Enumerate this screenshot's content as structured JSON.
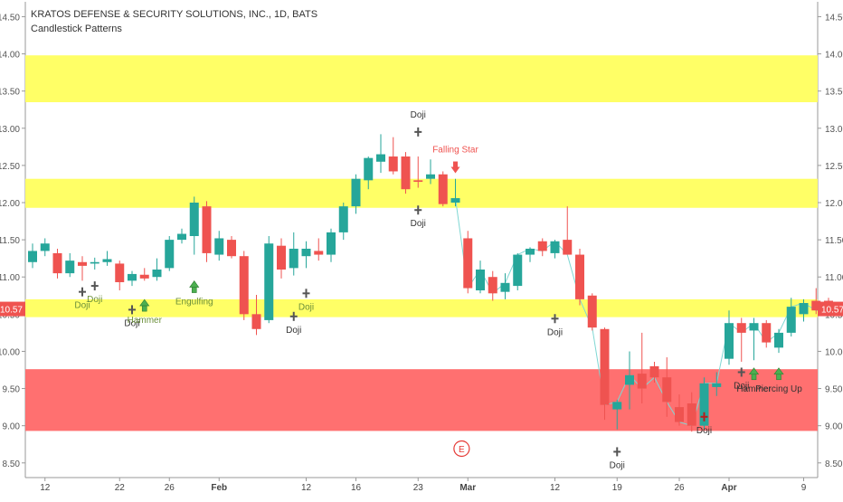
{
  "header": {
    "title": "KRATOS DEFENSE & SECURITY SOLUTIONS, INC., 1D, BATS",
    "subtitle": "Candlestick Patterns"
  },
  "last_price_badge": "10.57",
  "earnings_marker": "E",
  "colors": {
    "up": "#26a69a",
    "down": "#ef5350",
    "zone_yellow": "#ffff66",
    "zone_red": "#ff7070",
    "line": "#7fd7d3",
    "pattern_down": "#ef5350",
    "pattern_up": "#4caf50",
    "doji": "#555555",
    "badge": "#ef5350"
  },
  "chart_data": {
    "type": "candlestick",
    "title": "KRATOS DEFENSE & SECURITY SOLUTIONS, INC., 1D, BATS",
    "subtitle": "Candlestick Patterns",
    "ylim": [
      8.4,
      14.7
    ],
    "y_ticks": [
      "8.50",
      "9.00",
      "9.50",
      "10.00",
      "10.50",
      "11.00",
      "11.50",
      "12.00",
      "12.50",
      "13.00",
      "13.50",
      "14.00",
      "14.50"
    ],
    "x_ticks": [
      {
        "label": "12",
        "index": 1
      },
      {
        "label": "22",
        "index": 7
      },
      {
        "label": "26",
        "index": 11
      },
      {
        "label": "Feb",
        "index": 15
      },
      {
        "label": "12",
        "index": 22
      },
      {
        "label": "16",
        "index": 26
      },
      {
        "label": "23",
        "index": 31
      },
      {
        "label": "Mar",
        "index": 35
      },
      {
        "label": "12",
        "index": 42
      },
      {
        "label": "19",
        "index": 47
      },
      {
        "label": "26",
        "index": 52
      },
      {
        "label": "Apr",
        "index": 56
      },
      {
        "label": "9",
        "index": 62
      }
    ],
    "zones": [
      {
        "color": "yellow",
        "from": 13.35,
        "to": 13.98
      },
      {
        "color": "yellow",
        "from": 11.93,
        "to": 12.32
      },
      {
        "color": "yellow",
        "from": 10.46,
        "to": 10.7
      },
      {
        "color": "red",
        "from": 8.93,
        "to": 9.76
      }
    ],
    "candles": [
      {
        "o": 11.2,
        "h": 11.45,
        "l": 11.12,
        "c": 11.35
      },
      {
        "o": 11.35,
        "h": 11.52,
        "l": 11.28,
        "c": 11.45
      },
      {
        "o": 11.32,
        "h": 11.38,
        "l": 10.98,
        "c": 11.05
      },
      {
        "o": 11.05,
        "h": 11.32,
        "l": 11.0,
        "c": 11.22
      },
      {
        "o": 11.2,
        "h": 11.28,
        "l": 10.95,
        "c": 11.15
      },
      {
        "o": 11.18,
        "h": 11.26,
        "l": 11.1,
        "c": 11.2
      },
      {
        "o": 11.2,
        "h": 11.35,
        "l": 11.15,
        "c": 11.24
      },
      {
        "o": 11.18,
        "h": 11.22,
        "l": 10.82,
        "c": 10.93
      },
      {
        "o": 10.95,
        "h": 11.08,
        "l": 10.88,
        "c": 11.04
      },
      {
        "o": 11.03,
        "h": 11.12,
        "l": 10.95,
        "c": 10.98
      },
      {
        "o": 11.0,
        "h": 11.25,
        "l": 10.95,
        "c": 11.1
      },
      {
        "o": 11.12,
        "h": 11.55,
        "l": 11.08,
        "c": 11.5
      },
      {
        "o": 11.5,
        "h": 11.65,
        "l": 11.45,
        "c": 11.58
      },
      {
        "o": 11.55,
        "h": 12.08,
        "l": 11.3,
        "c": 12.0
      },
      {
        "o": 11.95,
        "h": 12.02,
        "l": 11.2,
        "c": 11.32
      },
      {
        "o": 11.3,
        "h": 11.62,
        "l": 11.22,
        "c": 11.52
      },
      {
        "o": 11.5,
        "h": 11.55,
        "l": 11.25,
        "c": 11.28
      },
      {
        "o": 11.28,
        "h": 11.35,
        "l": 10.42,
        "c": 10.5
      },
      {
        "o": 10.5,
        "h": 10.76,
        "l": 10.22,
        "c": 10.3
      },
      {
        "o": 10.42,
        "h": 11.55,
        "l": 10.38,
        "c": 11.45
      },
      {
        "o": 11.42,
        "h": 11.52,
        "l": 10.98,
        "c": 11.1
      },
      {
        "o": 11.12,
        "h": 11.6,
        "l": 11.02,
        "c": 11.38
      },
      {
        "o": 11.28,
        "h": 11.48,
        "l": 11.12,
        "c": 11.38
      },
      {
        "o": 11.35,
        "h": 11.52,
        "l": 11.22,
        "c": 11.3
      },
      {
        "o": 11.3,
        "h": 11.65,
        "l": 11.2,
        "c": 11.6
      },
      {
        "o": 11.6,
        "h": 12.0,
        "l": 11.5,
        "c": 11.95
      },
      {
        "o": 11.95,
        "h": 12.38,
        "l": 11.85,
        "c": 12.32
      },
      {
        "o": 12.3,
        "h": 12.62,
        "l": 12.18,
        "c": 12.6
      },
      {
        "o": 12.55,
        "h": 12.92,
        "l": 12.4,
        "c": 12.65
      },
      {
        "o": 12.62,
        "h": 12.88,
        "l": 12.38,
        "c": 12.42
      },
      {
        "o": 12.62,
        "h": 12.68,
        "l": 12.12,
        "c": 12.18
      },
      {
        "o": 12.3,
        "h": 12.62,
        "l": 12.2,
        "c": 12.28
      },
      {
        "o": 12.32,
        "h": 12.58,
        "l": 12.25,
        "c": 12.38
      },
      {
        "o": 12.38,
        "h": 12.42,
        "l": 11.95,
        "c": 11.98
      },
      {
        "o": 12.0,
        "h": 12.32,
        "l": 11.95,
        "c": 12.06
      },
      {
        "o": 11.52,
        "h": 11.62,
        "l": 10.78,
        "c": 10.85
      },
      {
        "o": 10.82,
        "h": 11.22,
        "l": 10.78,
        "c": 11.1
      },
      {
        "o": 11.0,
        "h": 11.08,
        "l": 10.68,
        "c": 10.78
      },
      {
        "o": 10.8,
        "h": 11.05,
        "l": 10.7,
        "c": 10.92
      },
      {
        "o": 10.88,
        "h": 11.32,
        "l": 10.82,
        "c": 11.3
      },
      {
        "o": 11.3,
        "h": 11.4,
        "l": 11.2,
        "c": 11.38
      },
      {
        "o": 11.48,
        "h": 11.52,
        "l": 11.28,
        "c": 11.35
      },
      {
        "o": 11.32,
        "h": 11.5,
        "l": 11.25,
        "c": 11.48
      },
      {
        "o": 11.5,
        "h": 11.95,
        "l": 11.3,
        "c": 11.3
      },
      {
        "o": 11.3,
        "h": 11.38,
        "l": 10.62,
        "c": 10.7
      },
      {
        "o": 10.75,
        "h": 10.78,
        "l": 10.28,
        "c": 10.32
      },
      {
        "o": 10.3,
        "h": 10.32,
        "l": 9.08,
        "c": 9.28
      },
      {
        "o": 9.22,
        "h": 9.35,
        "l": 8.95,
        "c": 9.32
      },
      {
        "o": 9.55,
        "h": 10.0,
        "l": 9.22,
        "c": 9.68
      },
      {
        "o": 9.7,
        "h": 10.25,
        "l": 9.3,
        "c": 9.5
      },
      {
        "o": 9.8,
        "h": 9.86,
        "l": 9.58,
        "c": 9.65
      },
      {
        "o": 9.65,
        "h": 9.92,
        "l": 9.12,
        "c": 9.32
      },
      {
        "o": 9.25,
        "h": 9.42,
        "l": 9.0,
        "c": 9.05
      },
      {
        "o": 9.3,
        "h": 9.45,
        "l": 8.92,
        "c": 9.0
      },
      {
        "o": 9.0,
        "h": 9.65,
        "l": 8.95,
        "c": 9.57
      },
      {
        "o": 9.52,
        "h": 9.72,
        "l": 9.4,
        "c": 9.57
      },
      {
        "o": 9.9,
        "h": 10.55,
        "l": 9.82,
        "c": 10.38
      },
      {
        "o": 10.38,
        "h": 10.45,
        "l": 9.86,
        "c": 10.25
      },
      {
        "o": 10.28,
        "h": 10.45,
        "l": 9.88,
        "c": 10.38
      },
      {
        "o": 10.38,
        "h": 10.42,
        "l": 10.05,
        "c": 10.12
      },
      {
        "o": 10.05,
        "h": 10.3,
        "l": 9.98,
        "c": 10.25
      },
      {
        "o": 10.25,
        "h": 10.72,
        "l": 10.2,
        "c": 10.6
      },
      {
        "o": 10.5,
        "h": 10.7,
        "l": 10.4,
        "c": 10.65
      },
      {
        "o": 10.68,
        "h": 10.85,
        "l": 10.5,
        "c": 10.55
      },
      {
        "o": 10.68,
        "h": 10.72,
        "l": 10.5,
        "c": 10.57
      }
    ],
    "line": [
      {
        "i": 34,
        "v": 12.06
      },
      {
        "i": 35,
        "v": 10.85
      },
      {
        "i": 36,
        "v": 11.1
      },
      {
        "i": 37,
        "v": 10.78
      },
      {
        "i": 38,
        "v": 10.92
      },
      {
        "i": 39,
        "v": 11.3
      },
      {
        "i": 40,
        "v": 11.38
      },
      {
        "i": 41,
        "v": 11.35
      },
      {
        "i": 42,
        "v": 11.48
      },
      {
        "i": 43,
        "v": 11.3
      },
      {
        "i": 44,
        "v": 10.7
      },
      {
        "i": 45,
        "v": 10.32
      },
      {
        "i": 46,
        "v": 9.28
      },
      {
        "i": 47,
        "v": 9.32
      },
      {
        "i": 48,
        "v": 9.68
      },
      {
        "i": 49,
        "v": 9.5
      },
      {
        "i": 50,
        "v": 9.65
      },
      {
        "i": 51,
        "v": 9.32
      },
      {
        "i": 52,
        "v": 9.05
      },
      {
        "i": 53,
        "v": 9.0
      },
      {
        "i": 54,
        "v": 9.57
      },
      {
        "i": 55,
        "v": 9.57
      },
      {
        "i": 56,
        "v": 10.38
      },
      {
        "i": 57,
        "v": 10.25
      },
      {
        "i": 58,
        "v": 10.38
      },
      {
        "i": 59,
        "v": 10.12
      },
      {
        "i": 60,
        "v": 10.25
      },
      {
        "i": 61,
        "v": 10.6
      },
      {
        "i": 62,
        "v": 10.65
      },
      {
        "i": 63,
        "v": 10.55
      },
      {
        "i": 64,
        "v": 10.57
      }
    ],
    "patterns": [
      {
        "i": 4,
        "label": "Doji",
        "kind": "doji",
        "at": 10.8,
        "label_pos": "below",
        "color": "green"
      },
      {
        "i": 5,
        "label": "Doji",
        "kind": "doji",
        "at": 10.88,
        "label_pos": "below",
        "color": "green"
      },
      {
        "i": 8,
        "label": "Doji",
        "kind": "doji",
        "at": 10.56,
        "label_pos": "below",
        "color": "dark"
      },
      {
        "i": 9,
        "label": "Hammer",
        "kind": "arrow_up",
        "at": 10.6,
        "label_pos": "below",
        "color": "green"
      },
      {
        "i": 13,
        "label": "Engulfing",
        "kind": "arrow_up",
        "at": 10.85,
        "label_pos": "below",
        "color": "green"
      },
      {
        "i": 21,
        "label": "Doji",
        "kind": "doji",
        "at": 10.47,
        "label_pos": "below",
        "color": "dark"
      },
      {
        "i": 22,
        "label": "Doji",
        "kind": "doji",
        "at": 10.78,
        "label_pos": "below",
        "color": "green"
      },
      {
        "i": 31,
        "label": "Doji",
        "kind": "doji",
        "at": 12.95,
        "label_pos": "above",
        "color": "dark"
      },
      {
        "i": 31,
        "label": "Doji",
        "kind": "doji",
        "at": 11.9,
        "label_pos": "below",
        "color": "dark"
      },
      {
        "i": 34,
        "label": "Falling Star",
        "kind": "arrow_down",
        "at": 12.48,
        "label_pos": "above",
        "color": "red"
      },
      {
        "i": 42,
        "label": "Doji",
        "kind": "doji",
        "at": 10.44,
        "label_pos": "below",
        "color": "dark"
      },
      {
        "i": 47,
        "label": "Doji",
        "kind": "doji",
        "at": 8.65,
        "label_pos": "below",
        "color": "dark"
      },
      {
        "i": 54,
        "label": "Doji",
        "kind": "doji_red",
        "at": 9.12,
        "label_pos": "below",
        "color": "dark"
      },
      {
        "i": 57,
        "label": "Doji",
        "kind": "doji",
        "at": 9.72,
        "label_pos": "below",
        "color": "dark"
      },
      {
        "i": 58,
        "label": "Hammer",
        "kind": "arrow_up",
        "at": 9.68,
        "label_pos": "below",
        "color": "dark"
      },
      {
        "i": 60,
        "label": "Piercing Up",
        "kind": "arrow_up",
        "at": 9.68,
        "label_pos": "below",
        "color": "dark"
      }
    ]
  }
}
